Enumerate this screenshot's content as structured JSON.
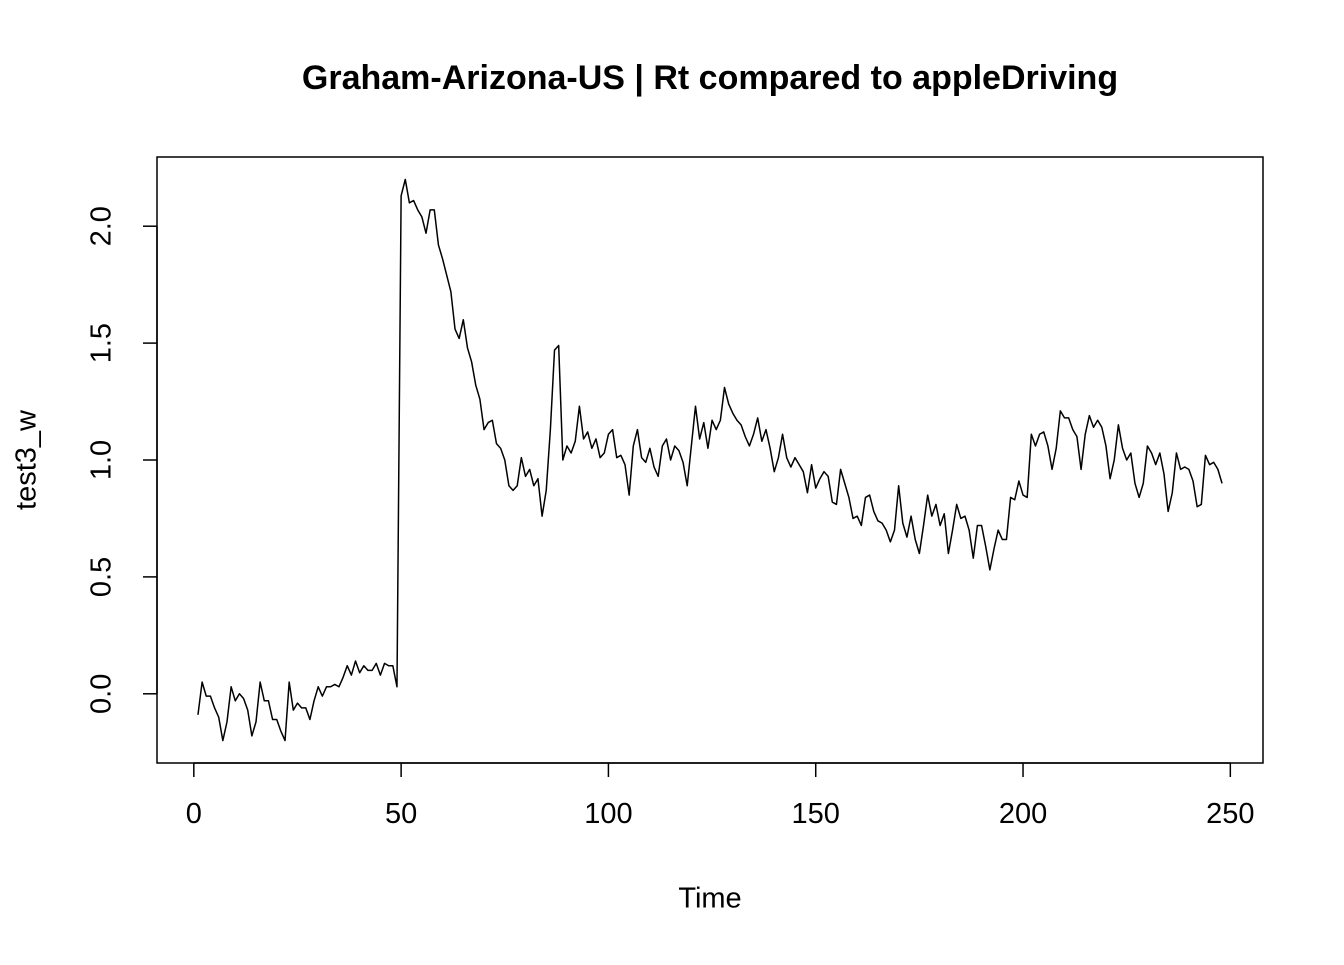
{
  "chart_data": {
    "type": "line",
    "title": "Graham-Arizona-US | Rt compared to appleDriving",
    "x_label": "Time",
    "y_label": "test3_w",
    "color": "#000000",
    "xlim": [
      -8.88,
      257.88
    ],
    "ylim": [
      -0.296,
      2.296
    ],
    "xticks": [
      0,
      50,
      100,
      150,
      200,
      250
    ],
    "yticks": [
      {
        "value": 0,
        "label": "0.0"
      },
      {
        "value": 0.5,
        "label": "0.5"
      },
      {
        "value": 1,
        "label": "1.0"
      },
      {
        "value": 1.5,
        "label": "1.5"
      },
      {
        "value": 2,
        "label": "2.0"
      }
    ],
    "x": [
      1,
      2,
      3,
      4,
      5,
      6,
      7,
      8,
      9,
      10,
      11,
      12,
      13,
      14,
      15,
      16,
      17,
      18,
      19,
      20,
      21,
      22,
      23,
      24,
      25,
      26,
      27,
      28,
      29,
      30,
      31,
      32,
      33,
      34,
      35,
      36,
      37,
      38,
      39,
      40,
      41,
      42,
      43,
      44,
      45,
      46,
      47,
      48,
      49,
      50,
      51,
      52,
      53,
      54,
      55,
      56,
      57,
      58,
      59,
      60,
      61,
      62,
      63,
      64,
      65,
      66,
      67,
      68,
      69,
      70,
      71,
      72,
      73,
      74,
      75,
      76,
      77,
      78,
      79,
      80,
      81,
      82,
      83,
      84,
      85,
      86,
      87,
      88,
      89,
      90,
      91,
      92,
      93,
      94,
      95,
      96,
      97,
      98,
      99,
      100,
      101,
      102,
      103,
      104,
      105,
      106,
      107,
      108,
      109,
      110,
      111,
      112,
      113,
      114,
      115,
      116,
      117,
      118,
      119,
      120,
      121,
      122,
      123,
      124,
      125,
      126,
      127,
      128,
      129,
      130,
      131,
      132,
      133,
      134,
      135,
      136,
      137,
      138,
      139,
      140,
      141,
      142,
      143,
      144,
      145,
      146,
      147,
      148,
      149,
      150,
      151,
      152,
      153,
      154,
      155,
      156,
      157,
      158,
      159,
      160,
      161,
      162,
      163,
      164,
      165,
      166,
      167,
      168,
      169,
      170,
      171,
      172,
      173,
      174,
      175,
      176,
      177,
      178,
      179,
      180,
      181,
      182,
      183,
      184,
      185,
      186,
      187,
      188,
      189,
      190,
      191,
      192,
      193,
      194,
      195,
      196,
      197,
      198,
      199,
      200,
      201,
      202,
      203,
      204,
      205,
      206,
      207,
      208,
      209,
      210,
      211,
      212,
      213,
      214,
      215,
      216,
      217,
      218,
      219,
      220,
      221,
      222,
      223,
      224,
      225,
      226,
      227,
      228,
      229,
      230,
      231,
      232,
      233,
      234,
      235,
      236,
      237,
      238,
      239,
      240,
      241,
      242,
      243,
      244,
      245,
      246,
      247,
      248
    ],
    "values": [
      -0.09,
      0.05,
      -0.01,
      -0.01,
      -0.06,
      -0.1,
      -0.2,
      -0.12,
      0.03,
      -0.03,
      0.0,
      -0.02,
      -0.07,
      -0.18,
      -0.12,
      0.05,
      -0.03,
      -0.03,
      -0.11,
      -0.11,
      -0.16,
      -0.2,
      0.05,
      -0.07,
      -0.04,
      -0.06,
      -0.06,
      -0.11,
      -0.03,
      0.03,
      -0.01,
      0.03,
      0.03,
      0.04,
      0.03,
      0.07,
      0.12,
      0.08,
      0.14,
      0.09,
      0.12,
      0.1,
      0.1,
      0.13,
      0.08,
      0.13,
      0.12,
      0.12,
      0.03,
      2.13,
      2.2,
      2.1,
      2.11,
      2.07,
      2.04,
      1.97,
      2.07,
      2.07,
      1.92,
      1.86,
      1.79,
      1.72,
      1.56,
      1.52,
      1.6,
      1.48,
      1.42,
      1.32,
      1.26,
      1.13,
      1.16,
      1.17,
      1.07,
      1.05,
      1.0,
      0.89,
      0.87,
      0.89,
      1.01,
      0.93,
      0.96,
      0.89,
      0.92,
      0.76,
      0.87,
      1.13,
      1.47,
      1.49,
      1.0,
      1.06,
      1.03,
      1.08,
      1.23,
      1.09,
      1.12,
      1.05,
      1.09,
      1.01,
      1.03,
      1.11,
      1.13,
      1.01,
      1.02,
      0.98,
      0.85,
      1.06,
      1.13,
      1.01,
      0.99,
      1.05,
      0.97,
      0.93,
      1.06,
      1.09,
      1.0,
      1.06,
      1.04,
      0.99,
      0.89,
      1.06,
      1.23,
      1.09,
      1.16,
      1.05,
      1.17,
      1.13,
      1.17,
      1.31,
      1.24,
      1.2,
      1.17,
      1.15,
      1.1,
      1.06,
      1.11,
      1.18,
      1.08,
      1.13,
      1.05,
      0.95,
      1.01,
      1.11,
      1.01,
      0.97,
      1.01,
      0.98,
      0.95,
      0.86,
      0.98,
      0.88,
      0.92,
      0.95,
      0.93,
      0.82,
      0.81,
      0.96,
      0.9,
      0.84,
      0.75,
      0.76,
      0.72,
      0.84,
      0.85,
      0.78,
      0.74,
      0.73,
      0.7,
      0.65,
      0.7,
      0.89,
      0.73,
      0.67,
      0.76,
      0.66,
      0.6,
      0.72,
      0.85,
      0.76,
      0.81,
      0.72,
      0.77,
      0.6,
      0.7,
      0.81,
      0.75,
      0.76,
      0.7,
      0.58,
      0.72,
      0.72,
      0.63,
      0.53,
      0.62,
      0.7,
      0.66,
      0.66,
      0.84,
      0.83,
      0.91,
      0.85,
      0.84,
      1.11,
      1.06,
      1.11,
      1.12,
      1.06,
      0.96,
      1.05,
      1.21,
      1.18,
      1.18,
      1.13,
      1.1,
      0.96,
      1.11,
      1.19,
      1.14,
      1.17,
      1.14,
      1.06,
      0.92,
      1.0,
      1.15,
      1.05,
      1.0,
      1.03,
      0.9,
      0.84,
      0.9,
      1.06,
      1.03,
      0.98,
      1.03,
      0.94,
      0.78,
      0.86,
      1.03,
      0.96,
      0.97,
      0.96,
      0.91,
      0.8,
      0.81,
      1.02,
      0.98,
      0.99,
      0.96,
      0.9
    ]
  }
}
